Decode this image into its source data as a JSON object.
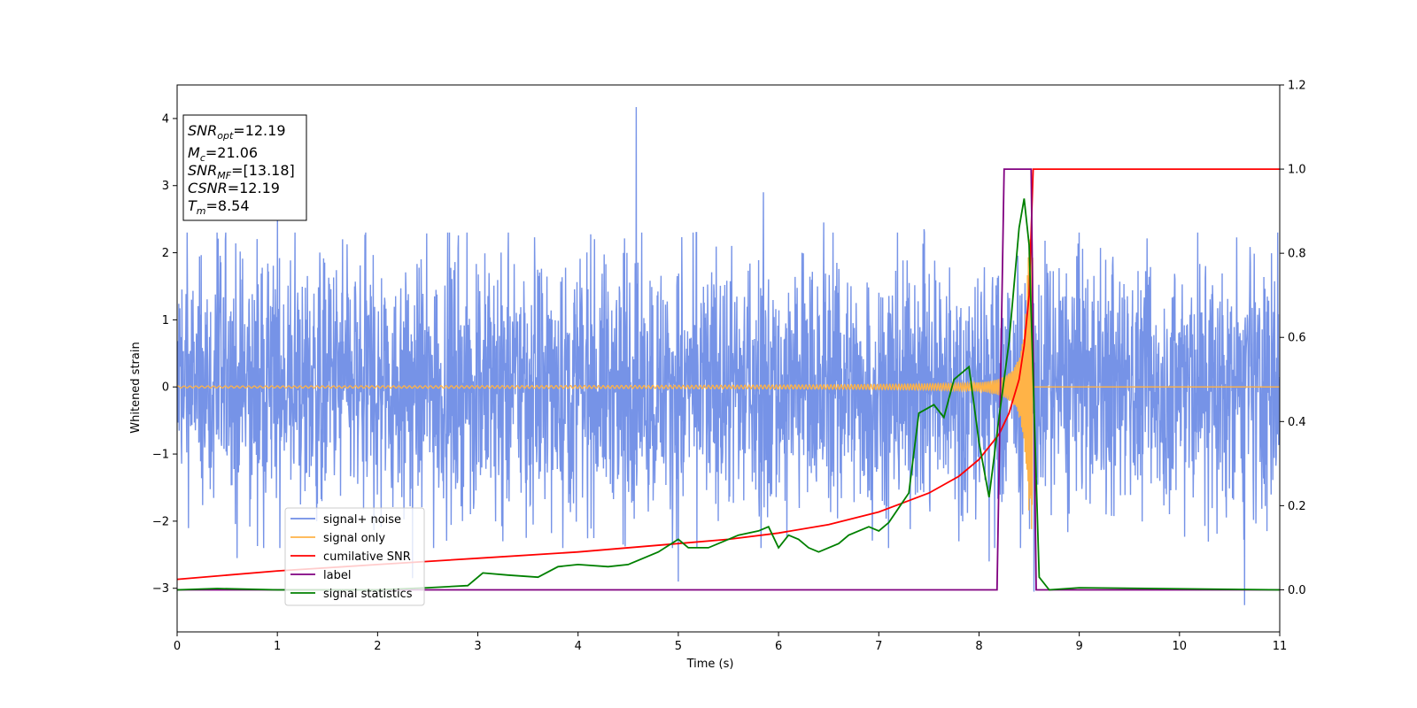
{
  "chart_data": {
    "type": "line",
    "xlabel": "Time (s)",
    "ylabel": "Whitened strain",
    "xlim": [
      0,
      11
    ],
    "ylim_left": [
      -3.65,
      4.5
    ],
    "ylim_right": [
      -0.1,
      1.2
    ],
    "x_ticks": [
      "0",
      "1",
      "2",
      "3",
      "4",
      "5",
      "6",
      "7",
      "8",
      "9",
      "10",
      "11"
    ],
    "y_ticks_left": [
      "−3",
      "−2",
      "−1",
      "0",
      "1",
      "2",
      "3",
      "4"
    ],
    "y_ticks_right": [
      "0.0",
      "0.2",
      "0.4",
      "0.6",
      "0.8",
      "1.0",
      "1.2"
    ],
    "info_box": [
      {
        "base": "SNR",
        "sub": "opt",
        "rest": "=12.19"
      },
      {
        "base": "M",
        "sub": "c",
        "rest": "=21.06"
      },
      {
        "base": "SNR",
        "sub": "MF",
        "rest": "=[13.18]"
      },
      {
        "base": "CSNR",
        "sub": "",
        "rest": "=12.19"
      },
      {
        "base": "T",
        "sub": "m",
        "rest": "=8.54"
      }
    ],
    "legend": {
      "placement": "lower-left",
      "entries": [
        "signal+ noise",
        "signal only",
        "cumilative SNR",
        "label",
        "signal statistics"
      ]
    },
    "colors": {
      "noise": "#6f8de6",
      "signal": "#ffb347",
      "cumulative": "#ff0000",
      "label": "#800080",
      "stats": "#008000"
    },
    "series": [
      {
        "name": "signal+ noise",
        "axis": "left",
        "description_type": "noise",
        "x_range": [
          0,
          11
        ],
        "amplitude_typical": 1.4,
        "spikes": [
          [
            0.1,
            2.3
          ],
          [
            0.4,
            2.3
          ],
          [
            0.6,
            -2.55
          ],
          [
            1.0,
            2.6
          ],
          [
            1.65,
            2.2
          ],
          [
            2.35,
            -2.85
          ],
          [
            3.25,
            -2.3
          ],
          [
            4.58,
            4.17
          ],
          [
            4.45,
            -2.35
          ],
          [
            5.0,
            -2.9
          ],
          [
            5.85,
            2.9
          ],
          [
            6.45,
            2.45
          ],
          [
            7.45,
            2.35
          ],
          [
            7.8,
            -2.3
          ],
          [
            8.1,
            -2.6
          ],
          [
            8.55,
            -3.05
          ],
          [
            9.0,
            2.3
          ],
          [
            10.65,
            -3.25
          ],
          [
            10.98,
            2.3
          ]
        ]
      },
      {
        "name": "signal only",
        "axis": "left",
        "description_type": "chirp",
        "merger_time": 8.54,
        "peak_amplitude": 2.2
      },
      {
        "name": "cumilative SNR",
        "axis": "right",
        "x": [
          0,
          1,
          2,
          3,
          4,
          5,
          5.5,
          6,
          6.5,
          7,
          7.5,
          7.8,
          8.0,
          8.2,
          8.3,
          8.4,
          8.45,
          8.5,
          8.54,
          11
        ],
        "y": [
          0.025,
          0.045,
          0.06,
          0.075,
          0.09,
          0.11,
          0.12,
          0.135,
          0.155,
          0.185,
          0.23,
          0.27,
          0.31,
          0.37,
          0.42,
          0.5,
          0.58,
          0.7,
          1.0,
          1.0
        ]
      },
      {
        "name": "label",
        "axis": "right",
        "x": [
          0,
          8.18,
          8.25,
          8.52,
          8.57,
          11
        ],
        "y": [
          0,
          0,
          1.0,
          1.0,
          0,
          0
        ]
      },
      {
        "name": "signal statistics",
        "axis": "right",
        "x": [
          0,
          0.4,
          1.0,
          2.0,
          2.5,
          2.9,
          3.05,
          3.3,
          3.6,
          3.8,
          4.0,
          4.3,
          4.5,
          4.8,
          5.0,
          5.1,
          5.3,
          5.6,
          5.8,
          5.9,
          6.0,
          6.1,
          6.2,
          6.3,
          6.4,
          6.6,
          6.7,
          6.9,
          7.0,
          7.1,
          7.3,
          7.4,
          7.55,
          7.65,
          7.75,
          7.9,
          8.0,
          8.1,
          8.2,
          8.3,
          8.4,
          8.45,
          8.5,
          8.6,
          8.7,
          9.0,
          11.0
        ],
        "y": [
          0,
          0.003,
          0.0,
          0.0,
          0.005,
          0.01,
          0.04,
          0.035,
          0.03,
          0.055,
          0.06,
          0.055,
          0.06,
          0.09,
          0.12,
          0.1,
          0.1,
          0.13,
          0.14,
          0.15,
          0.1,
          0.13,
          0.12,
          0.1,
          0.09,
          0.11,
          0.13,
          0.15,
          0.14,
          0.16,
          0.23,
          0.42,
          0.44,
          0.41,
          0.5,
          0.53,
          0.35,
          0.22,
          0.41,
          0.59,
          0.86,
          0.93,
          0.82,
          0.03,
          0.0,
          0.005,
          0.0
        ]
      }
    ]
  }
}
